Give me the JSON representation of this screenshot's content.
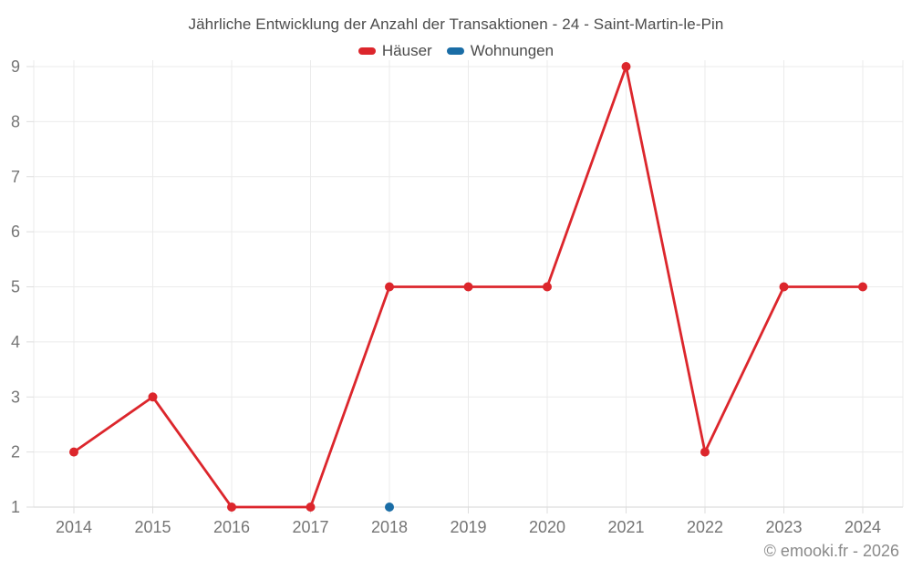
{
  "chart_data": {
    "type": "line",
    "title": "Jährliche Entwicklung der Anzahl der Transaktionen - 24 - Saint-Martin-le-Pin",
    "categories": [
      "2014",
      "2015",
      "2016",
      "2017",
      "2018",
      "2019",
      "2020",
      "2021",
      "2022",
      "2023",
      "2024"
    ],
    "series": [
      {
        "name": "Häuser",
        "color": "#dc262c",
        "values": [
          2,
          3,
          1,
          1,
          5,
          5,
          5,
          9,
          2,
          5,
          5
        ]
      },
      {
        "name": "Wohnungen",
        "color": "#1a6da6",
        "values": [
          null,
          null,
          null,
          null,
          1,
          null,
          null,
          null,
          null,
          null,
          null
        ]
      }
    ],
    "xlabel": "",
    "ylabel": "",
    "ylim": [
      1,
      9
    ],
    "yticks": [
      1,
      2,
      3,
      4,
      5,
      6,
      7,
      8,
      9
    ],
    "grid": true,
    "legend_position": "top",
    "marker": "circle"
  },
  "footer": {
    "attribution": "© emooki.fr - 2026"
  }
}
